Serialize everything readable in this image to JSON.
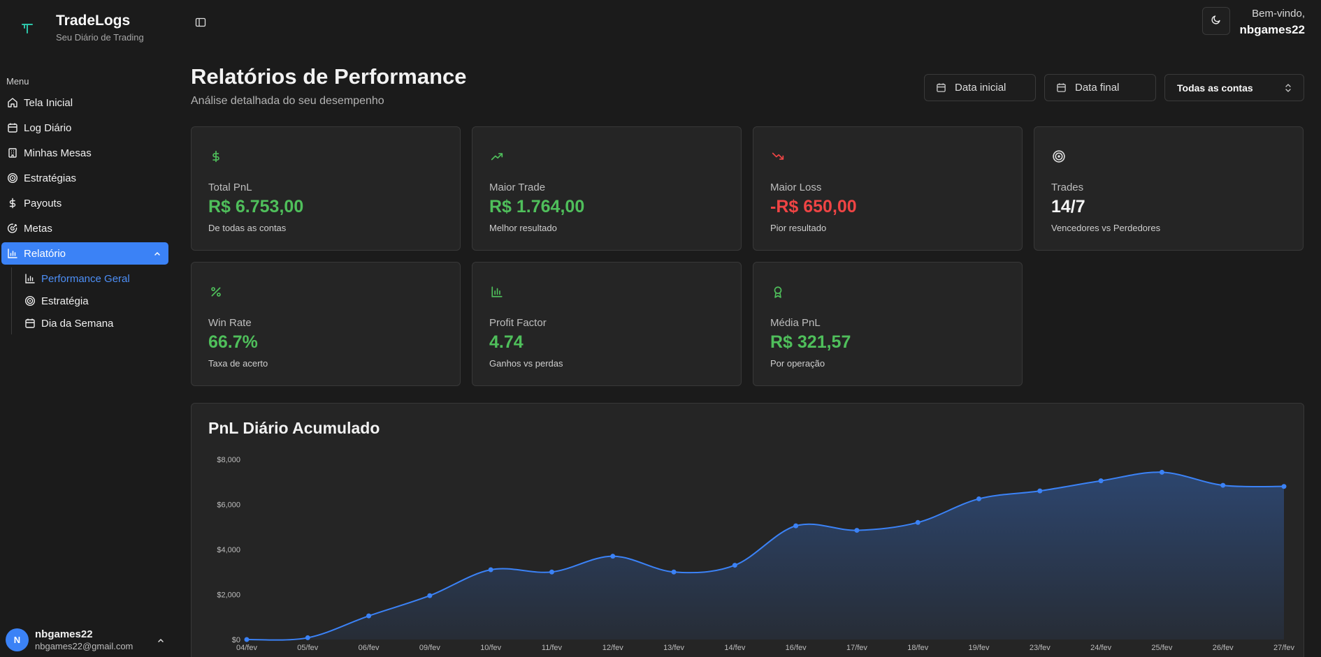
{
  "brand": {
    "name": "TradeLogs",
    "subtitle": "Seu Diário de Trading"
  },
  "menu": {
    "label": "Menu",
    "items": [
      {
        "label": "Tela Inicial",
        "icon": "home-icon"
      },
      {
        "label": "Log Diário",
        "icon": "calendar-icon"
      },
      {
        "label": "Minhas Mesas",
        "icon": "building-icon"
      },
      {
        "label": "Estratégias",
        "icon": "target-icon"
      },
      {
        "label": "Payouts",
        "icon": "dollar-icon"
      },
      {
        "label": "Metas",
        "icon": "goal-icon"
      },
      {
        "label": "Relatório",
        "icon": "bar-chart-icon",
        "active": true
      }
    ],
    "submenu": [
      {
        "label": "Performance Geral",
        "icon": "bar-chart-icon",
        "active": true
      },
      {
        "label": "Estratégia",
        "icon": "target-icon"
      },
      {
        "label": "Dia da Semana",
        "icon": "calendar-icon"
      }
    ]
  },
  "user": {
    "initial": "N",
    "name": "nbgames22",
    "email": "nbgames22@gmail.com"
  },
  "header": {
    "welcome": "Bem-vindo,",
    "username": "nbgames22"
  },
  "page": {
    "title": "Relatórios de Performance",
    "subtitle": "Análise detalhada do seu desempenho"
  },
  "filters": {
    "start_placeholder": "Data inicial",
    "end_placeholder": "Data final",
    "account": "Todas as contas"
  },
  "cards": [
    {
      "label": "Total PnL",
      "value": "R$ 6.753,00",
      "desc": "De todas as contas",
      "icon": "dollar-icon",
      "tone": "green"
    },
    {
      "label": "Maior Trade",
      "value": "R$ 1.764,00",
      "desc": "Melhor resultado",
      "icon": "trending-up-icon",
      "tone": "green"
    },
    {
      "label": "Maior Loss",
      "value": "-R$ 650,00",
      "desc": "Pior resultado",
      "icon": "trending-down-icon",
      "tone": "red"
    },
    {
      "label": "Trades",
      "value": "14/7",
      "desc": "Vencedores vs Perdedores",
      "icon": "target-icon",
      "tone": "white"
    },
    {
      "label": "Win Rate",
      "value": "66.7%",
      "desc": "Taxa de acerto",
      "icon": "percent-icon",
      "tone": "green"
    },
    {
      "label": "Profit Factor",
      "value": "4.74",
      "desc": "Ganhos vs perdas",
      "icon": "bar-chart-icon",
      "tone": "green"
    },
    {
      "label": "Média PnL",
      "value": "R$ 321,57",
      "desc": "Por operação",
      "icon": "award-icon",
      "tone": "green"
    }
  ],
  "colors": {
    "accent": "#3b82f6",
    "positive": "#4fbf5b",
    "negative": "#ef4444"
  },
  "chart_data": {
    "type": "area",
    "title": "PnL Diário Acumulado",
    "xlabel": "",
    "ylabel": "",
    "ylim": [
      0,
      8000
    ],
    "yticks": [
      "$0",
      "$2,000",
      "$4,000",
      "$6,000",
      "$8,000"
    ],
    "categories": [
      "04/fev",
      "05/fev",
      "06/fev",
      "09/fev",
      "10/fev",
      "11/fev",
      "12/fev",
      "13/fev",
      "14/fev",
      "16/fev",
      "17/fev",
      "18/fev",
      "19/fev",
      "23/fev",
      "24/fev",
      "25/fev",
      "26/fev",
      "27/fev"
    ],
    "series": [
      {
        "values": [
          0,
          80,
          1050,
          1950,
          3100,
          3000,
          3700,
          3000,
          3300,
          5050,
          4850,
          5200,
          6250,
          6600,
          7050,
          7430,
          6850,
          6800
        ]
      }
    ],
    "grid": false,
    "color": "#3b82f6"
  }
}
